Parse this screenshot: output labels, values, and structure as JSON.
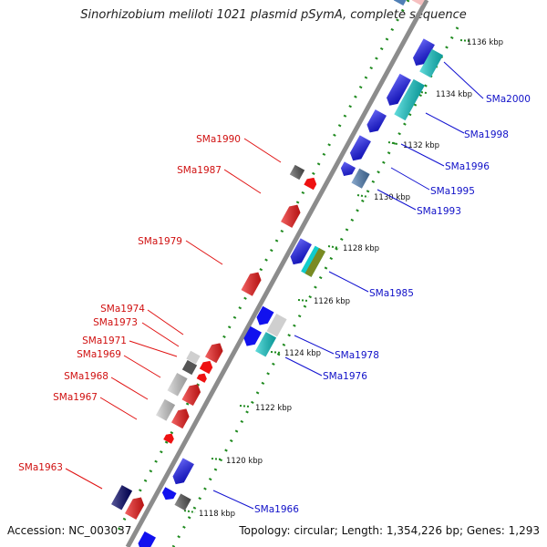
{
  "title": "Sinorhizobium meliloti 1021 plasmid pSymA, complete sequence",
  "accession_text": "Accession: NC_003037",
  "topology_text": "Topology: circular; Length: 1,354,226 bp; Genes: 1,293",
  "colors": {
    "backbone": "#8c8c8c",
    "tick_dots": "#1f8a1f",
    "forward_label": "#d01010",
    "reverse_label": "#1010c8",
    "red_gene": "#ee1111",
    "blue_gene": "#1111ee",
    "cyan_gene": "#11cccc",
    "navy_gene": "#000066",
    "steel_gene": "#4f7fb5",
    "olive_gene": "#7a8a22",
    "gray_gene": "#555555",
    "light_gene": "#cfcfcf",
    "pink_gene": "#f6c0c0"
  },
  "ticks": [
    {
      "label": "1136 kbp"
    },
    {
      "label": "1134 kbp"
    },
    {
      "label": "1132 kbp"
    },
    {
      "label": "1130 kbp"
    },
    {
      "label": "1128 kbp"
    },
    {
      "label": "1126 kbp"
    },
    {
      "label": "1124 kbp"
    },
    {
      "label": "1122 kbp"
    },
    {
      "label": "1120 kbp"
    },
    {
      "label": "1118 kbp"
    }
  ],
  "gene_labels_left": [
    {
      "label": "SMa1990"
    },
    {
      "label": "SMa1987"
    },
    {
      "label": "SMa1979"
    },
    {
      "label": "SMa1974"
    },
    {
      "label": "SMa1973"
    },
    {
      "label": "SMa1971"
    },
    {
      "label": "SMa1969"
    },
    {
      "label": "SMa1968"
    },
    {
      "label": "SMa1967"
    },
    {
      "label": "SMa1963"
    }
  ],
  "gene_labels_right": [
    {
      "label": "SMa2000"
    },
    {
      "label": "SMa1998"
    },
    {
      "label": "SMa1996"
    },
    {
      "label": "SMa1995"
    },
    {
      "label": "SMa1993"
    },
    {
      "label": "SMa1985"
    },
    {
      "label": "SMa1978"
    },
    {
      "label": "SMa1976"
    },
    {
      "label": "SMa1966"
    }
  ]
}
